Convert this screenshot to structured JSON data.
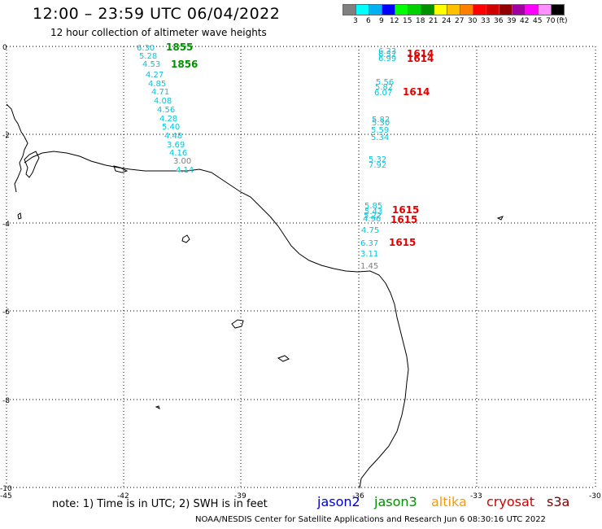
{
  "header": {
    "title": "12:00 – 23:59 UTC 06/04/2022",
    "subtitle": "12 hour collection of altimeter wave heights"
  },
  "legend": {
    "colors": [
      "#808080",
      "#00ffff",
      "#00b0f0",
      "#0000ff",
      "#00ff00",
      "#00d000",
      "#009000",
      "#ffff00",
      "#ffc000",
      "#ff8000",
      "#ff0000",
      "#d00000",
      "#900000",
      "#a000a0",
      "#ff00ff",
      "#ff90ff",
      "#000000"
    ],
    "labels": [
      "3",
      "6",
      "9",
      "12",
      "15",
      "18",
      "21",
      "24",
      "27",
      "30",
      "33",
      "36",
      "39",
      "42",
      "45",
      "70",
      "(ft)"
    ]
  },
  "axes": {
    "x_ticks": [
      "-45",
      "-42",
      "-39",
      "-36",
      "-33",
      "-30"
    ],
    "y_ticks": [
      "0",
      "-2",
      "-4",
      "-6",
      "-8",
      "-10"
    ]
  },
  "tracks": {
    "west": {
      "values": [
        "6.30",
        "5.28",
        "4.53",
        "4.27",
        "4.85",
        "4.71",
        "4.08",
        "4.56",
        "4.28",
        "5.40",
        "4.48",
        "3.69",
        "4.16",
        "3.00",
        "4.14"
      ],
      "times": [
        "1855",
        "1856"
      ]
    },
    "east": {
      "values": [
        "6.33",
        "6.52",
        "6.99",
        "5.56",
        "5.82",
        "6.07",
        "5.82",
        "5.30",
        "5.59",
        "5.34",
        "5.32",
        "7.92",
        "5.85",
        "5.43",
        "5.22",
        "4.96",
        "4.75",
        "6.37",
        "3.11",
        "1.45"
      ],
      "times": [
        "1614",
        "1614",
        "1614",
        "1615",
        "1615",
        "1615"
      ]
    }
  },
  "footer": {
    "note": "note: 1) Time is in UTC; 2) SWH is in feet",
    "satellites": [
      {
        "name": "jason2",
        "color": "#0000d0"
      },
      {
        "name": "jason3",
        "color": "#009000"
      },
      {
        "name": "altika",
        "color": "#ff9900"
      },
      {
        "name": "cryosat",
        "color": "#d00000"
      },
      {
        "name": "s3a",
        "color": "#800000"
      }
    ],
    "credit": "NOAA/NESDIS Center for Satellite Applications and Research   Jun  6 08:30:16 UTC 2022"
  }
}
